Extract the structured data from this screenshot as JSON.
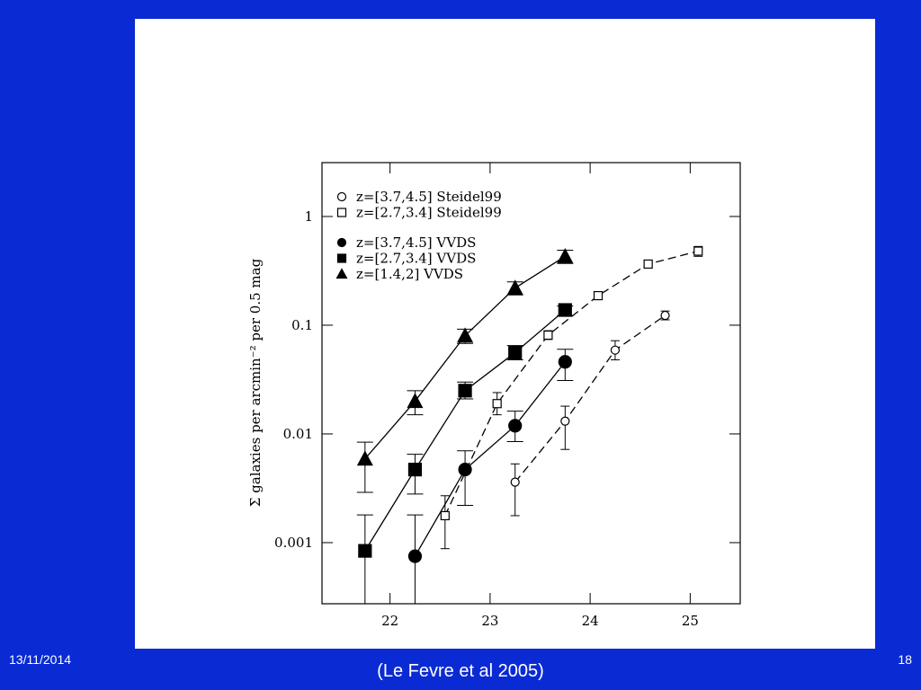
{
  "slide": {
    "date": "13/11/2014",
    "page": "18",
    "caption": "(Le Fevre et al 2005)"
  },
  "chart_data": {
    "type": "scatter",
    "y_label": "Σ galaxies per arcmin⁻² per 0.5 mag",
    "log_y": true,
    "legend": "upper left",
    "xlim": [
      21.32,
      25.5
    ],
    "xticks": [
      22,
      23,
      24,
      25
    ],
    "ylim": [
      0.000274,
      3.13
    ],
    "yticks": [
      0.001,
      0.01,
      0.1,
      1
    ],
    "series": [
      {
        "name": "z=[3.7,4.5] Steidel99",
        "marker": "circle",
        "filled": false,
        "dashed": true,
        "color": "#000000",
        "x": [
          23.25,
          23.75,
          24.25,
          24.75
        ],
        "values": [
          0.0036,
          0.0131,
          0.059,
          0.123
        ],
        "lower": [
          0.00177,
          0.0072,
          0.048,
          0.112
        ],
        "upper": [
          0.0053,
          0.018,
          0.072,
          0.135
        ]
      },
      {
        "name": "z=[2.7,3.4] Steidel99",
        "marker": "square",
        "filled": false,
        "dashed": true,
        "color": "#000000",
        "x": [
          22.55,
          23.07,
          23.58,
          24.08,
          24.58,
          25.08
        ],
        "values": [
          0.00177,
          0.019,
          0.081,
          0.187,
          0.365,
          0.48
        ],
        "lower": [
          0.00088,
          0.015,
          0.074,
          0.173,
          0.35,
          0.43
        ],
        "upper": [
          0.0027,
          0.024,
          0.089,
          0.203,
          0.38,
          0.53
        ]
      },
      {
        "name": "z=[3.7,4.5] VVDS",
        "marker": "circle",
        "filled": true,
        "dashed": false,
        "color": "#000000",
        "x": [
          22.25,
          22.75,
          23.25,
          23.75
        ],
        "values": [
          0.00075,
          0.0047,
          0.0119,
          0.046
        ],
        "lower": [
          0.0002,
          0.0022,
          0.0085,
          0.031
        ],
        "upper": [
          0.0018,
          0.007,
          0.0162,
          0.06
        ]
      },
      {
        "name": "z=[2.7,3.4] VVDS",
        "marker": "square",
        "filled": true,
        "dashed": false,
        "color": "#000000",
        "x": [
          21.75,
          22.25,
          22.75,
          23.25,
          23.75
        ],
        "values": [
          0.00084,
          0.0047,
          0.025,
          0.056,
          0.138
        ],
        "lower": [
          0.0002,
          0.0028,
          0.021,
          0.048,
          0.123
        ],
        "upper": [
          0.0018,
          0.0065,
          0.03,
          0.065,
          0.15
        ]
      },
      {
        "name": "z=[1.4,2] VVDS",
        "marker": "triangle",
        "filled": true,
        "dashed": false,
        "color": "#000000",
        "x": [
          21.75,
          22.25,
          22.75,
          23.25,
          23.75
        ],
        "values": [
          0.0059,
          0.02,
          0.08,
          0.22,
          0.43
        ],
        "lower": [
          0.0029,
          0.015,
          0.068,
          0.19,
          0.37
        ],
        "upper": [
          0.0084,
          0.025,
          0.092,
          0.25,
          0.49
        ]
      }
    ]
  }
}
